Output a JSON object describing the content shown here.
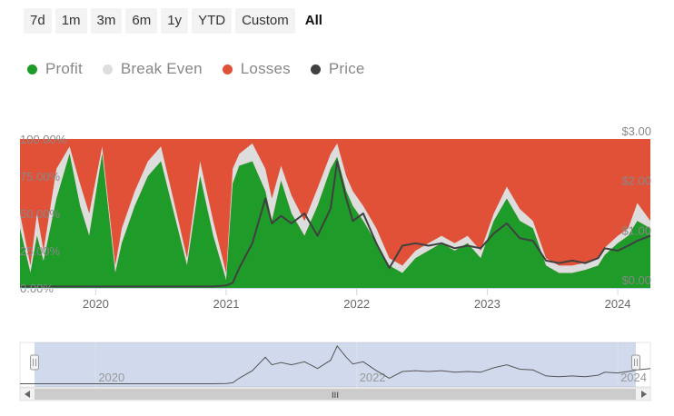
{
  "range_selector": {
    "buttons": [
      "7d",
      "1m",
      "3m",
      "6m",
      "1y",
      "YTD",
      "Custom",
      "All"
    ],
    "active": "All"
  },
  "legend": [
    {
      "label": "Profit",
      "color": "#1e9b29"
    },
    {
      "label": "Break Even",
      "color": "#dddddd"
    },
    {
      "label": "Losses",
      "color": "#e05138"
    },
    {
      "label": "Price",
      "color": "#404040"
    }
  ],
  "chart_data": {
    "type": "area",
    "stacking": "percent",
    "x_label": "",
    "y_label": "",
    "x_range": [
      2019.42,
      2024.25
    ],
    "x_ticks": [
      2020,
      2021,
      2022,
      2023,
      2024
    ],
    "x_tick_labels": [
      "2020",
      "2021",
      "2022",
      "2023",
      "2024"
    ],
    "y_left_range": [
      0,
      100
    ],
    "y_left_ticks": [
      "0.00%",
      "25.00%",
      "50.00%",
      "75.00%",
      "100.00%"
    ],
    "y_right_range": [
      0,
      3
    ],
    "y_right_ticks": [
      "$0.00",
      "$1.00",
      "$2.00",
      "$3.00"
    ],
    "grid": false,
    "x": [
      2019.42,
      2019.5,
      2019.55,
      2019.6,
      2019.7,
      2019.8,
      2019.88,
      2019.95,
      2020.05,
      2020.15,
      2020.2,
      2020.3,
      2020.4,
      2020.5,
      2020.6,
      2020.7,
      2020.8,
      2020.9,
      2021.0,
      2021.05,
      2021.1,
      2021.2,
      2021.3,
      2021.35,
      2021.42,
      2021.5,
      2021.6,
      2021.7,
      2021.8,
      2021.85,
      2021.92,
      2021.97,
      2022.05,
      2022.15,
      2022.25,
      2022.35,
      2022.45,
      2022.55,
      2022.65,
      2022.75,
      2022.85,
      2022.95,
      2023.05,
      2023.15,
      2023.25,
      2023.35,
      2023.45,
      2023.55,
      2023.65,
      2023.75,
      2023.85,
      2023.9,
      2024.0,
      2024.08,
      2024.15,
      2024.25
    ],
    "series": [
      {
        "name": "Profit",
        "values": [
          40,
          10,
          35,
          18,
          60,
          90,
          55,
          35,
          90,
          10,
          30,
          55,
          75,
          85,
          50,
          15,
          75,
          35,
          5,
          70,
          82,
          85,
          65,
          45,
          72,
          50,
          35,
          55,
          80,
          88,
          65,
          55,
          45,
          30,
          15,
          10,
          20,
          25,
          30,
          25,
          30,
          20,
          45,
          60,
          45,
          40,
          15,
          10,
          10,
          12,
          15,
          22,
          30,
          35,
          45,
          40
        ]
      },
      {
        "name": "Break Even",
        "values": [
          10,
          5,
          15,
          7,
          20,
          5,
          15,
          15,
          5,
          5,
          10,
          10,
          10,
          10,
          8,
          5,
          10,
          10,
          5,
          10,
          8,
          12,
          15,
          15,
          10,
          12,
          10,
          12,
          10,
          9,
          10,
          10,
          10,
          10,
          5,
          5,
          5,
          5,
          5,
          5,
          5,
          5,
          5,
          8,
          8,
          5,
          5,
          5,
          5,
          5,
          5,
          5,
          5,
          5,
          12,
          5
        ]
      },
      {
        "name": "Losses",
        "values": [
          50,
          85,
          50,
          75,
          20,
          5,
          30,
          50,
          5,
          85,
          60,
          35,
          15,
          5,
          42,
          80,
          15,
          55,
          90,
          20,
          10,
          3,
          20,
          40,
          18,
          38,
          55,
          33,
          10,
          3,
          25,
          35,
          45,
          60,
          80,
          85,
          75,
          70,
          65,
          70,
          65,
          75,
          50,
          32,
          47,
          55,
          80,
          85,
          85,
          83,
          80,
          73,
          65,
          60,
          43,
          55
        ]
      },
      {
        "name": "Price",
        "axis": "right",
        "values": [
          0.03,
          0.03,
          0.03,
          0.03,
          0.03,
          0.03,
          0.03,
          0.03,
          0.03,
          0.03,
          0.03,
          0.03,
          0.03,
          0.03,
          0.03,
          0.03,
          0.03,
          0.03,
          0.05,
          0.1,
          0.4,
          0.9,
          1.8,
          1.3,
          1.45,
          1.3,
          1.5,
          1.05,
          1.6,
          2.55,
          1.8,
          1.35,
          1.5,
          0.9,
          0.4,
          0.85,
          0.9,
          0.85,
          0.9,
          0.8,
          0.85,
          0.8,
          1.1,
          1.3,
          1.0,
          0.95,
          0.55,
          0.5,
          0.55,
          0.5,
          0.6,
          0.8,
          0.75,
          0.85,
          0.95,
          1.05
        ]
      }
    ]
  },
  "navigator": {
    "x_tick_labels": [
      "2020",
      "2022",
      "2024"
    ],
    "scrollbar_grip": "III"
  }
}
